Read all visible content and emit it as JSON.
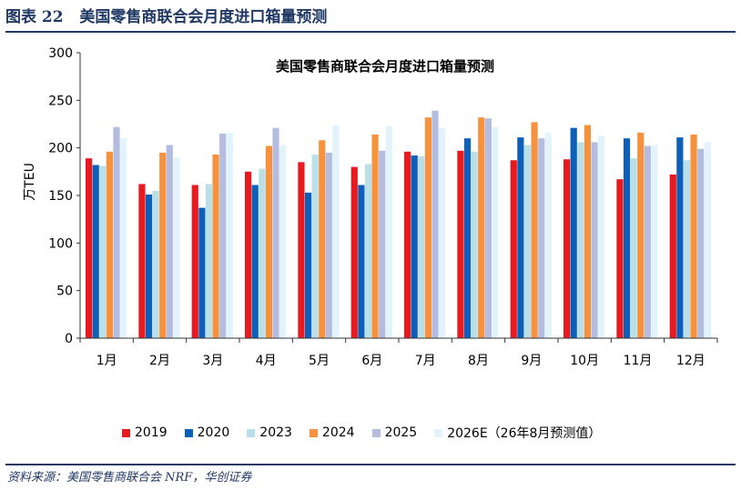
{
  "figure": {
    "label": "图表 22",
    "title": "美国零售商联合会月度进口箱量预测"
  },
  "source": "资料来源：美国零售商联合会 NRF，华创证券",
  "chart_data": {
    "type": "bar",
    "title": "美国零售商联合会月度进口箱量预测",
    "xlabel": "",
    "ylabel": "万TEU",
    "ylim": [
      0,
      300
    ],
    "yticks": [
      0,
      50,
      100,
      150,
      200,
      250,
      300
    ],
    "grid": false,
    "legend_position": "bottom",
    "categories": [
      "1月",
      "2月",
      "3月",
      "4月",
      "5月",
      "6月",
      "7月",
      "8月",
      "9月",
      "10月",
      "11月",
      "12月"
    ],
    "series": [
      {
        "name": "2019",
        "color": "#e8191f",
        "values": [
          189,
          162,
          161,
          175,
          185,
          180,
          196,
          197,
          187,
          188,
          167,
          172
        ]
      },
      {
        "name": "2020",
        "color": "#0d5fb8",
        "values": [
          182,
          151,
          137,
          161,
          153,
          161,
          192,
          210,
          211,
          221,
          210,
          211
        ]
      },
      {
        "name": "2023",
        "color": "#b9dfe8",
        "values": [
          181,
          155,
          162,
          178,
          193,
          183,
          191,
          196,
          203,
          206,
          189,
          187
        ]
      },
      {
        "name": "2024",
        "color": "#f6923e",
        "values": [
          196,
          195,
          193,
          202,
          208,
          214,
          232,
          232,
          227,
          224,
          216,
          214
        ]
      },
      {
        "name": "2025",
        "color": "#b4bde0",
        "values": [
          222,
          203,
          215,
          221,
          195,
          197,
          239,
          231,
          210,
          206,
          202,
          199
        ]
      },
      {
        "name": "2026E（26年8月预测值）",
        "color": "#e3f3fc",
        "values": [
          210,
          190,
          216,
          203,
          224,
          223,
          221,
          222,
          216,
          213,
          203,
          206
        ]
      }
    ]
  }
}
